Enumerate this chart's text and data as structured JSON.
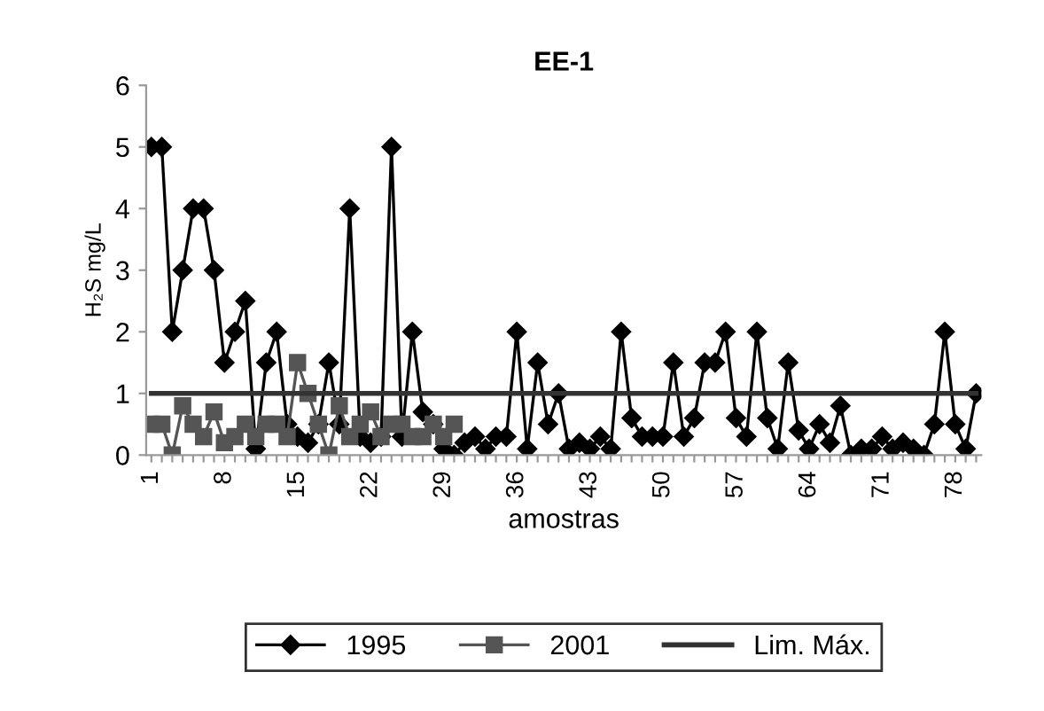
{
  "chart_data": {
    "type": "line",
    "title": "EE-1",
    "xlabel": "amostras",
    "ylabel": "H₂S mg/L",
    "categories": [
      "1",
      null,
      null,
      null,
      null,
      null,
      null,
      "8",
      null,
      null,
      null,
      null,
      null,
      null,
      "15",
      null,
      null,
      null,
      null,
      null,
      null,
      "22",
      null,
      null,
      null,
      null,
      null,
      null,
      "29",
      null,
      null,
      null,
      null,
      null,
      null,
      "36",
      null,
      null,
      null,
      null,
      null,
      null,
      "43",
      null,
      null,
      null,
      null,
      null,
      null,
      "50",
      null,
      null,
      null,
      null,
      null,
      null,
      "57",
      null,
      null,
      null,
      null,
      null,
      null,
      "64",
      null,
      null,
      null,
      null,
      null,
      null,
      "71",
      null,
      null,
      null,
      null,
      null,
      null,
      "78",
      null,
      null
    ],
    "series": [
      {
        "name": "1995",
        "color": "#000000",
        "marker": "diamond",
        "values": [
          5,
          5,
          2,
          3,
          4,
          4,
          3,
          1.5,
          2,
          2.5,
          0.1,
          1.5,
          2,
          0.5,
          0.3,
          0.2,
          0.5,
          1.5,
          0.5,
          4,
          0.3,
          0.2,
          0.3,
          5,
          0.3,
          2,
          0.7,
          0.5,
          0.1,
          0,
          0.2,
          0.3,
          0.1,
          0.3,
          0.3,
          2,
          0.1,
          1.5,
          0.5,
          1,
          0.1,
          0.2,
          0.1,
          0.3,
          0.1,
          2,
          0.6,
          0.3,
          0.3,
          0.3,
          1.5,
          0.3,
          0.6,
          1.5,
          1.5,
          2,
          0.6,
          0.3,
          2,
          0.6,
          0.1,
          1.5,
          0.4,
          0.1,
          0.5,
          0.2,
          0.8,
          0,
          0.1,
          0.1,
          0.3,
          0.1,
          0.2,
          0.1,
          0,
          0.5,
          2,
          0.5,
          0.1,
          1
        ]
      },
      {
        "name": "2001",
        "color": "#555555",
        "marker": "square",
        "values": [
          0.5,
          0.5,
          0,
          0.8,
          0.5,
          0.3,
          0.7,
          0.2,
          0.3,
          0.5,
          0.3,
          0.5,
          0.5,
          0.3,
          1.5,
          1,
          0.5,
          0,
          0.8,
          0.3,
          0.5,
          0.7,
          0.3,
          0.5,
          0.5,
          0.3,
          0.3,
          0.5,
          0.3,
          0.5,
          null,
          null,
          null,
          null,
          null,
          null,
          null,
          null,
          null,
          null,
          null,
          null,
          null,
          null,
          null,
          null,
          null,
          null,
          null,
          null,
          null,
          null,
          null,
          null,
          null,
          null,
          null,
          null,
          null,
          null,
          null,
          null,
          null,
          null,
          null,
          null,
          null,
          null,
          null,
          null,
          null,
          null,
          null,
          null,
          null,
          null,
          null,
          null,
          null,
          null
        ]
      },
      {
        "name": "Lim. Máx.",
        "color": "#333333",
        "marker": "none",
        "values": [
          1,
          1,
          1,
          1,
          1,
          1,
          1,
          1,
          1,
          1,
          1,
          1,
          1,
          1,
          1,
          1,
          1,
          1,
          1,
          1,
          1,
          1,
          1,
          1,
          1,
          1,
          1,
          1,
          1,
          1,
          1,
          1,
          1,
          1,
          1,
          1,
          1,
          1,
          1,
          1,
          1,
          1,
          1,
          1,
          1,
          1,
          1,
          1,
          1,
          1,
          1,
          1,
          1,
          1,
          1,
          1,
          1,
          1,
          1,
          1,
          1,
          1,
          1,
          1,
          1,
          1,
          1,
          1,
          1,
          1,
          1,
          1,
          1,
          1,
          1,
          1,
          1,
          1,
          1,
          1
        ]
      }
    ],
    "ylim": [
      0,
      6
    ],
    "yticks": [
      0,
      1,
      2,
      3,
      4,
      5,
      6
    ],
    "grid": false,
    "legend": "bottom"
  }
}
